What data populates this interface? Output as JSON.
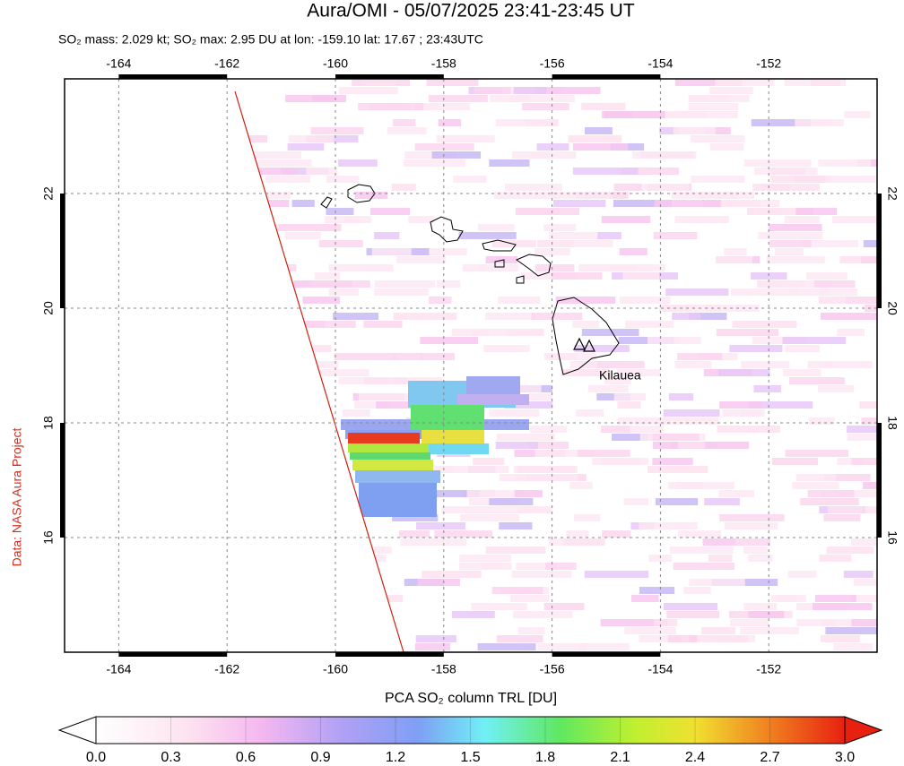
{
  "title": "Aura/OMI - 05/07/2025 23:41-23:45 UT",
  "subtitle": "SO₂ mass: 2.029 kt; SO₂ max: 2.95 DU at lon: -159.10 lat: 17.67 ; 23:43UTC",
  "credit": "Data: NASA Aura Project",
  "map": {
    "xlim": [
      -165,
      -150
    ],
    "ylim": [
      14,
      24
    ],
    "xticks": [
      -164,
      -162,
      -160,
      -158,
      -156,
      -154,
      -152
    ],
    "yticks": [
      16,
      18,
      20,
      22
    ],
    "grid": true,
    "annotation": "Kilauea"
  },
  "colorbar": {
    "label": "PCA SO₂ column TRL [DU]",
    "lim": [
      0,
      3
    ],
    "ticks": [
      {
        "value": 0,
        "label": "0.0"
      },
      {
        "value": 0.3,
        "label": "0.3"
      },
      {
        "value": 0.6,
        "label": "0.6"
      },
      {
        "value": 0.9,
        "label": "0.9"
      },
      {
        "value": 1.2,
        "label": "1.2"
      },
      {
        "value": 1.5,
        "label": "1.5"
      },
      {
        "value": 1.8,
        "label": "1.8"
      },
      {
        "value": 2.1,
        "label": "2.1"
      },
      {
        "value": 2.4,
        "label": "2.4"
      },
      {
        "value": 2.7,
        "label": "2.7"
      },
      {
        "value": 3,
        "label": "3.0"
      }
    ]
  }
}
